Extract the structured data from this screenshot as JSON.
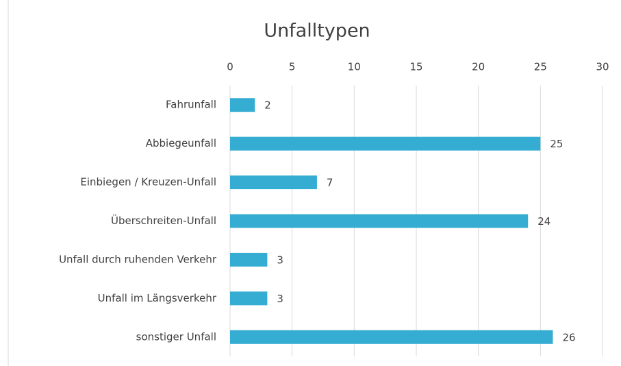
{
  "chart_data": {
    "type": "hbar",
    "title": "Unfalltypen",
    "categories": [
      "Fahrunfall",
      "Abbiegeunfall",
      "Einbiegen / Kreuzen-Unfall",
      "Überschreiten-Unfall",
      "Unfall durch ruhenden Verkehr",
      "Unfall im Längsverkehr",
      "sonstiger Unfall"
    ],
    "values": [
      2,
      25,
      7,
      24,
      3,
      3,
      26
    ],
    "color": "#35acd2",
    "xlim": [
      0,
      30
    ],
    "xticks": [
      0,
      5,
      10,
      15,
      20,
      25,
      30
    ],
    "grid": true
  }
}
